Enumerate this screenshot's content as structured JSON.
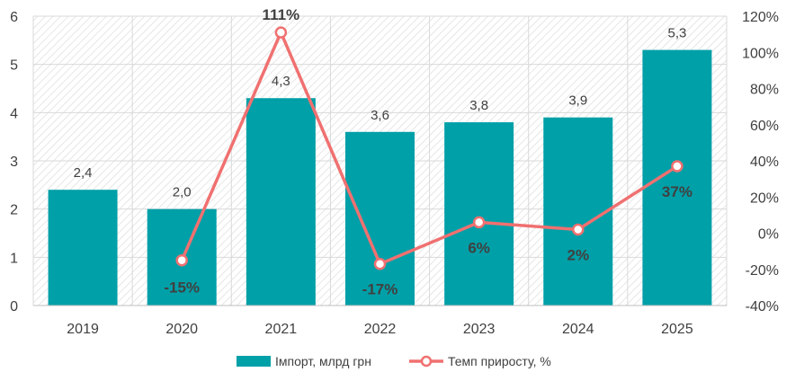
{
  "chart_data": {
    "type": "bar",
    "categories": [
      "2019",
      "2020",
      "2021",
      "2022",
      "2023",
      "2024",
      "2025"
    ],
    "series": [
      {
        "name": "Імпорт, млрд грн",
        "type": "bar",
        "axis": "left",
        "values": [
          2.4,
          2.0,
          4.3,
          3.6,
          3.8,
          3.9,
          5.3
        ],
        "labels": [
          "2,4",
          "2,0",
          "4,3",
          "3,6",
          "3,8",
          "3,9",
          "5,3"
        ]
      },
      {
        "name": "Темп приросту, %",
        "type": "line",
        "axis": "right",
        "values": [
          null,
          -15,
          111,
          -17,
          6,
          2,
          37
        ],
        "labels": [
          "",
          "-15%",
          "111%",
          "-17%",
          "6%",
          "2%",
          "37%"
        ]
      }
    ],
    "y_left": {
      "min": 0,
      "max": 6,
      "ticks": [
        "0",
        "1",
        "2",
        "3",
        "4",
        "5",
        "6"
      ]
    },
    "y_right": {
      "min": -40,
      "max": 120,
      "ticks": [
        "-40%",
        "-20%",
        "0%",
        "20%",
        "40%",
        "60%",
        "80%",
        "100%",
        "120%"
      ]
    },
    "grid": true,
    "legend": "bottom",
    "colors": {
      "bar": "#00A0A8",
      "line": "#F07070",
      "grid": "#D9D9D9",
      "text": "#404040"
    }
  }
}
